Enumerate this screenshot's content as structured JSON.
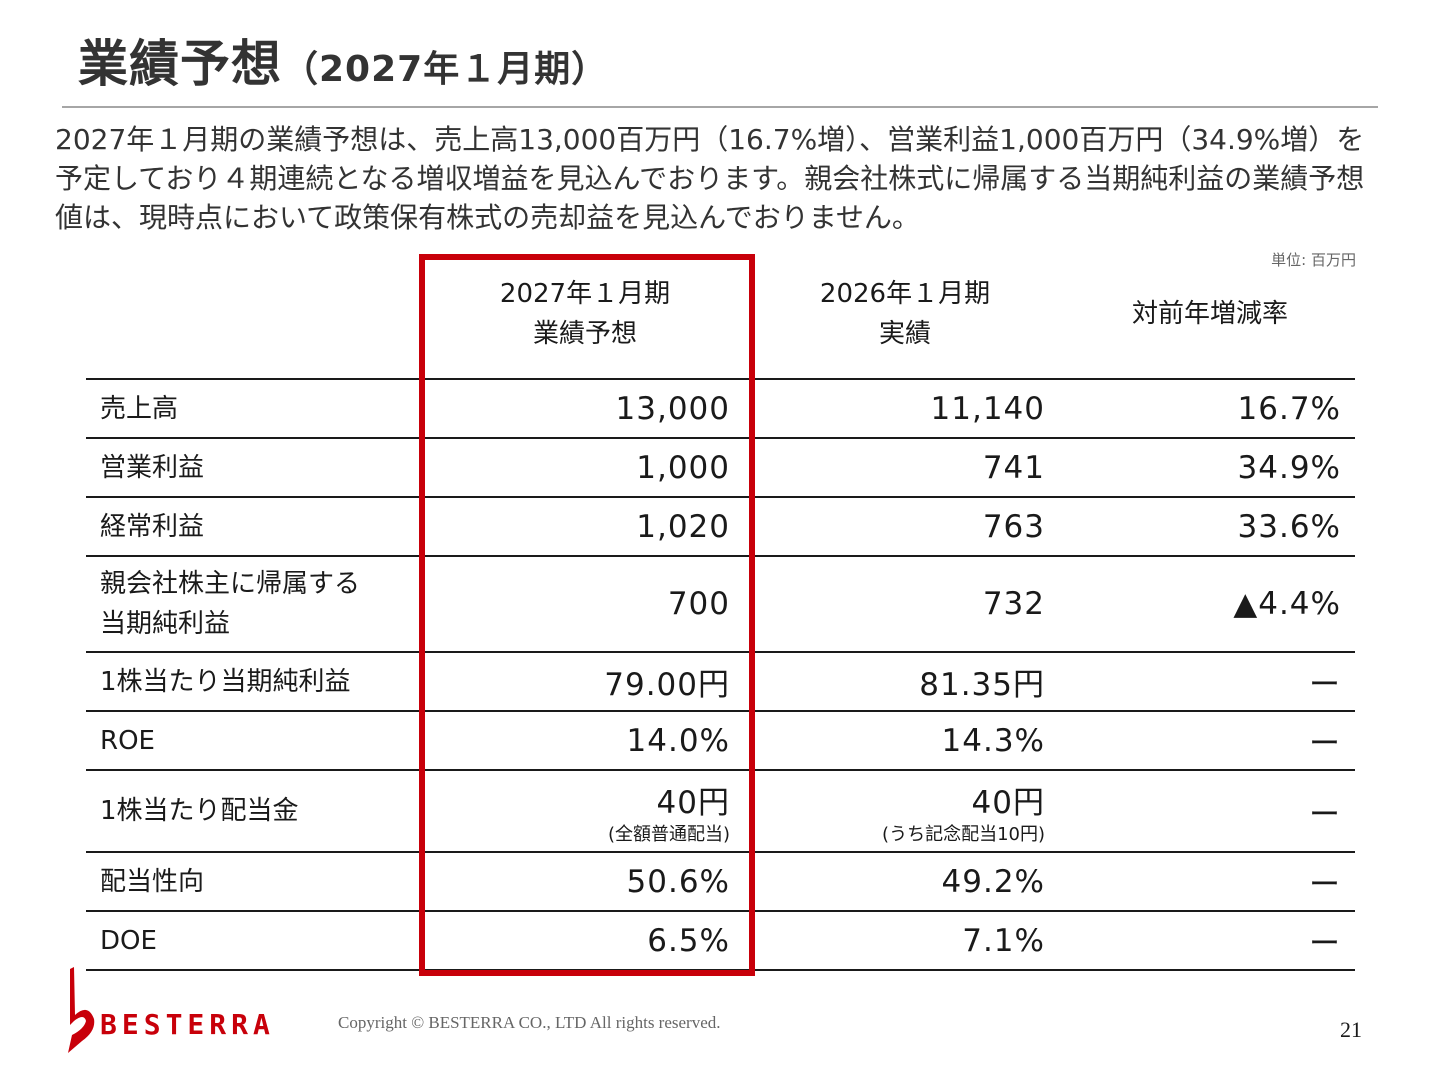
{
  "header": {
    "title": "業績予想",
    "subtitle": "（2027年１月期）"
  },
  "summary": "2027年１月期の業績予想は、売上高13,000百万円（16.7%増）、営業利益1,000百万円（34.9%増）を予定しており４期連続となる増収増益を見込んでおります。親会社株式に帰属する当期純利益の業績予想値は、現時点において政策保有株式の売却益を見込んでおりません。",
  "unit": "単位: 百万円",
  "columns": {
    "forecast": [
      "2027年１月期",
      "業績予想"
    ],
    "actual": [
      "2026年１月期",
      "実績"
    ],
    "change": [
      "対前年増減率"
    ]
  },
  "rows": [
    {
      "label": [
        "売上高"
      ],
      "forecast": "13,000",
      "actual": "11,140",
      "change": "16.7%"
    },
    {
      "label": [
        "営業利益"
      ],
      "forecast": "1,000",
      "actual": "741",
      "change": "34.9%"
    },
    {
      "label": [
        "経常利益"
      ],
      "forecast": "1,020",
      "actual": "763",
      "change": "33.6%"
    },
    {
      "label": [
        "親会社株主に帰属する",
        "当期純利益"
      ],
      "forecast": "700",
      "actual": "732",
      "change": "▲4.4%"
    },
    {
      "label": [
        "1株当たり当期純利益"
      ],
      "forecast": "79.00円",
      "actual": "81.35円",
      "change": "ー"
    },
    {
      "label": [
        "ROE"
      ],
      "forecast": "14.0%",
      "actual": "14.3%",
      "change": "ー"
    },
    {
      "label": [
        "1株当たり配当金"
      ],
      "forecast": "40円",
      "forecast_note": "(全額普通配当)",
      "actual": "40円",
      "actual_note": "(うち記念配当10円)",
      "change": "ー"
    },
    {
      "label": [
        "配当性向"
      ],
      "forecast": "50.6%",
      "actual": "49.2%",
      "change": "ー"
    },
    {
      "label": [
        "DOE"
      ],
      "forecast": "6.5%",
      "actual": "7.1%",
      "change": "ー"
    }
  ],
  "footer": {
    "logo_text": "BESTERRA",
    "copyright": "Copyright © BESTERRA CO., LTD All rights reserved.",
    "page_number": "21"
  },
  "colors": {
    "accent": "#c8000a",
    "text": "#1a1a1a",
    "muted": "#666666",
    "rule": "#a6a6a6"
  }
}
